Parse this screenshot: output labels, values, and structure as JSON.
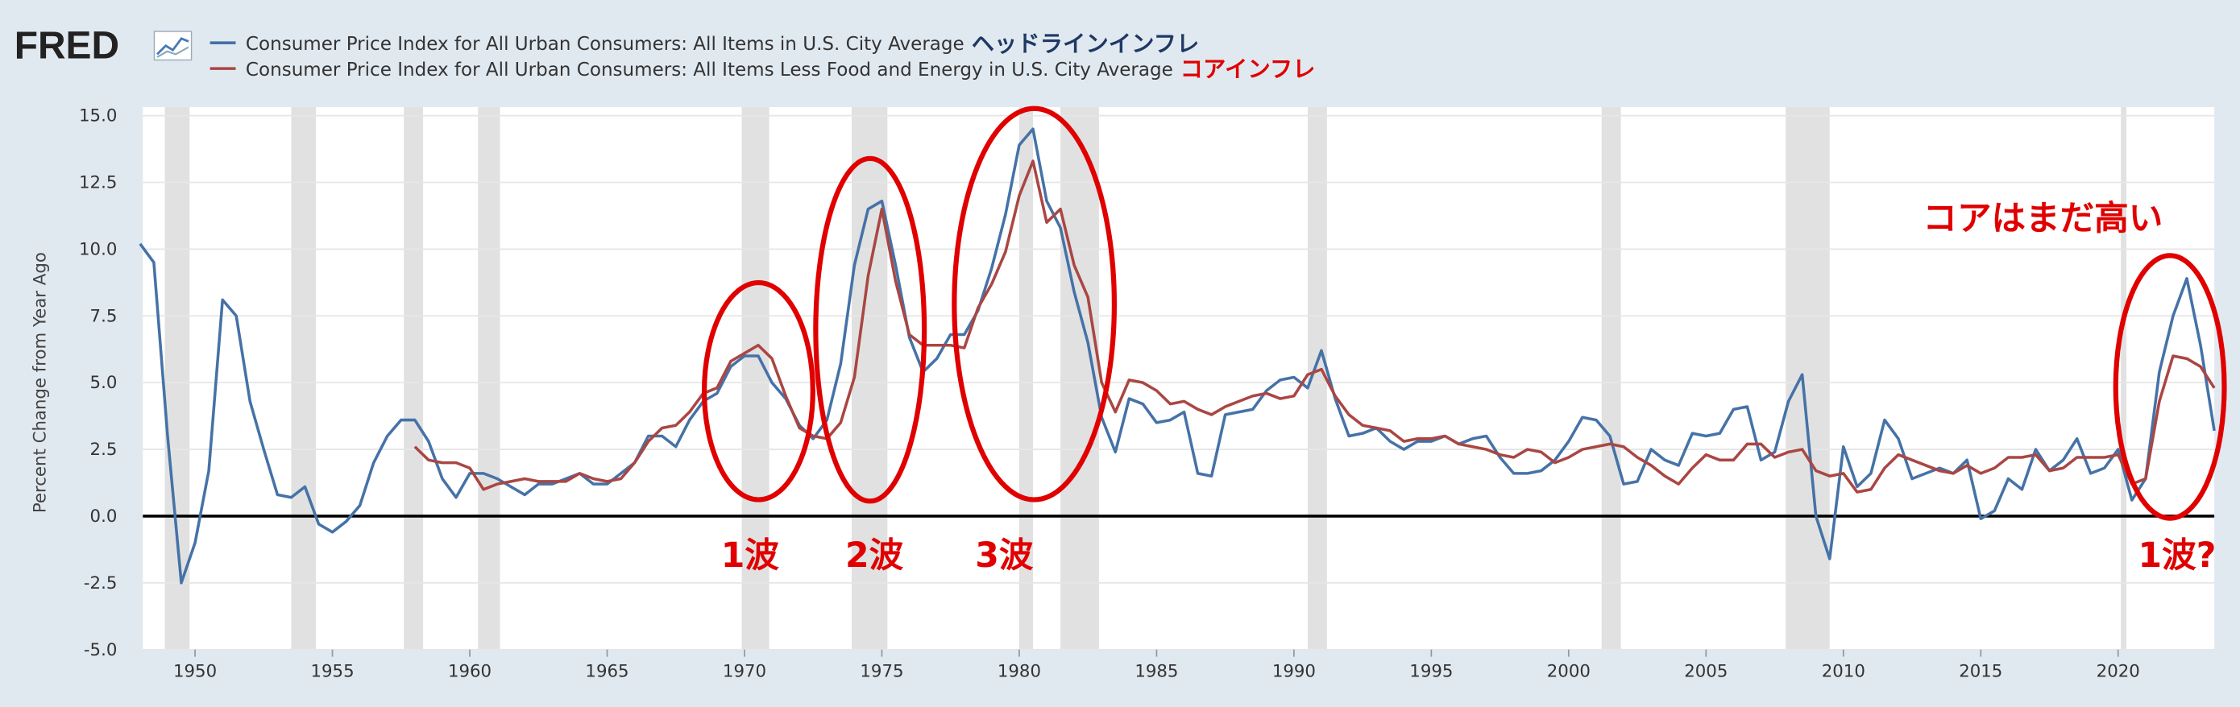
{
  "chart_data": {
    "type": "line",
    "logo": "FRED",
    "y_axis_label": "Percent Change from Year Ago",
    "legend_notes": [
      "ヘッドラインインフレ",
      "コアインフレ"
    ],
    "annotations": [
      "1波",
      "2波",
      "3波",
      "1波?",
      "コアはまだ高い"
    ],
    "xlim": [
      1948.1,
      2023.5
    ],
    "xticks": [
      1950,
      1955,
      1960,
      1965,
      1970,
      1975,
      1980,
      1985,
      1990,
      1995,
      2000,
      2005,
      2010,
      2015,
      2020
    ],
    "ylim": [
      -5,
      15
    ],
    "yticks": [
      {
        "value": -5,
        "label": "-5.0"
      },
      {
        "value": -2.5,
        "label": "-2.5"
      },
      {
        "value": 0,
        "label": "0.0"
      },
      {
        "value": 2.5,
        "label": "2.5"
      },
      {
        "value": 5,
        "label": "5.0"
      },
      {
        "value": 7.5,
        "label": "7.5"
      },
      {
        "value": 10,
        "label": "10.0"
      },
      {
        "value": 12.5,
        "label": "12.5"
      },
      {
        "value": 15,
        "label": "15.0"
      }
    ],
    "grid": true,
    "recessions": [
      [
        1948.9,
        1949.8
      ],
      [
        1953.5,
        1954.4
      ],
      [
        1957.6,
        1958.3
      ],
      [
        1960.3,
        1961.1
      ],
      [
        1969.9,
        1970.9
      ],
      [
        1973.9,
        1975.2
      ],
      [
        1980.0,
        1980.5
      ],
      [
        1981.5,
        1982.9
      ],
      [
        1990.5,
        1991.2
      ],
      [
        2001.2,
        2001.9
      ],
      [
        2007.9,
        2009.5
      ],
      [
        2020.1,
        2020.3
      ]
    ],
    "x": [
      1948.0,
      1948.5,
      1949.0,
      1949.5,
      1950.0,
      1950.5,
      1951.0,
      1951.5,
      1952.0,
      1952.5,
      1953.0,
      1953.5,
      1954.0,
      1954.5,
      1955.0,
      1955.5,
      1956.0,
      1956.5,
      1957.0,
      1957.5,
      1958.0,
      1958.5,
      1959.0,
      1959.5,
      1960.0,
      1960.5,
      1961.0,
      1961.5,
      1962.0,
      1962.5,
      1963.0,
      1963.5,
      1964.0,
      1964.5,
      1965.0,
      1965.5,
      1966.0,
      1966.5,
      1967.0,
      1967.5,
      1968.0,
      1968.5,
      1969.0,
      1969.5,
      1970.0,
      1970.5,
      1971.0,
      1971.5,
      1972.0,
      1972.5,
      1973.0,
      1973.5,
      1974.0,
      1974.5,
      1975.0,
      1975.5,
      1976.0,
      1976.5,
      1977.0,
      1977.5,
      1978.0,
      1978.5,
      1979.0,
      1979.5,
      1980.0,
      1980.5,
      1981.0,
      1981.5,
      1982.0,
      1982.5,
      1983.0,
      1983.5,
      1984.0,
      1984.5,
      1985.0,
      1985.5,
      1986.0,
      1986.5,
      1987.0,
      1987.5,
      1988.0,
      1988.5,
      1989.0,
      1989.5,
      1990.0,
      1990.5,
      1991.0,
      1991.5,
      1992.0,
      1992.5,
      1993.0,
      1993.5,
      1994.0,
      1994.5,
      1995.0,
      1995.5,
      1996.0,
      1996.5,
      1997.0,
      1997.5,
      1998.0,
      1998.5,
      1999.0,
      1999.5,
      2000.0,
      2000.5,
      2001.0,
      2001.5,
      2002.0,
      2002.5,
      2003.0,
      2003.5,
      2004.0,
      2004.5,
      2005.0,
      2005.5,
      2006.0,
      2006.5,
      2007.0,
      2007.5,
      2008.0,
      2008.5,
      2009.0,
      2009.5,
      2010.0,
      2010.5,
      2011.0,
      2011.5,
      2012.0,
      2012.5,
      2013.0,
      2013.5,
      2014.0,
      2014.5,
      2015.0,
      2015.5,
      2016.0,
      2016.5,
      2017.0,
      2017.5,
      2018.0,
      2018.5,
      2019.0,
      2019.5,
      2020.0,
      2020.5,
      2021.0,
      2021.5,
      2022.0,
      2022.5,
      2023.0,
      2023.5
    ],
    "series": [
      {
        "name": "Consumer Price Index for All Urban Consumers: All Items in U.S. City Average",
        "color": "#4572a7",
        "values": [
          10.2,
          9.5,
          3.0,
          -2.5,
          -1.0,
          1.7,
          8.1,
          7.5,
          4.3,
          2.5,
          0.8,
          0.7,
          1.1,
          -0.3,
          -0.6,
          -0.2,
          0.4,
          2.0,
          3.0,
          3.6,
          3.6,
          2.8,
          1.4,
          0.7,
          1.6,
          1.6,
          1.4,
          1.1,
          0.8,
          1.2,
          1.2,
          1.4,
          1.6,
          1.2,
          1.2,
          1.6,
          2.0,
          3.0,
          3.0,
          2.6,
          3.6,
          4.3,
          4.6,
          5.6,
          6.0,
          6.0,
          5.0,
          4.4,
          3.4,
          2.9,
          3.6,
          5.7,
          9.4,
          11.5,
          11.8,
          9.4,
          6.7,
          5.4,
          5.9,
          6.8,
          6.8,
          7.7,
          9.3,
          11.3,
          13.9,
          14.5,
          11.8,
          10.8,
          8.4,
          6.5,
          3.7,
          2.4,
          4.4,
          4.2,
          3.5,
          3.6,
          3.9,
          1.6,
          1.5,
          3.8,
          3.9,
          4.0,
          4.7,
          5.1,
          5.2,
          4.8,
          6.2,
          4.4,
          3.0,
          3.1,
          3.3,
          2.8,
          2.5,
          2.8,
          2.8,
          3.0,
          2.7,
          2.9,
          3.0,
          2.2,
          1.6,
          1.6,
          1.7,
          2.1,
          2.8,
          3.7,
          3.6,
          3.0,
          1.2,
          1.3,
          2.5,
          2.1,
          1.9,
          3.1,
          3.0,
          3.1,
          4.0,
          4.1,
          2.1,
          2.4,
          4.3,
          5.3,
          0.0,
          -1.6,
          2.6,
          1.1,
          1.6,
          3.6,
          2.9,
          1.4,
          1.6,
          1.8,
          1.6,
          2.1,
          -0.1,
          0.2,
          1.4,
          1.0,
          2.5,
          1.7,
          2.1,
          2.9,
          1.6,
          1.8,
          2.5,
          0.6,
          1.4,
          5.4,
          7.5,
          8.9,
          6.4,
          3.2
        ]
      },
      {
        "name": "Consumer Price Index for All Urban Consumers: All Items Less Food and Energy in U.S. City Average",
        "color": "#aa4643",
        "values": [
          null,
          null,
          null,
          null,
          null,
          null,
          null,
          null,
          null,
          null,
          null,
          null,
          null,
          null,
          null,
          null,
          null,
          null,
          null,
          null,
          2.6,
          2.1,
          2.0,
          2.0,
          1.8,
          1.0,
          1.2,
          1.3,
          1.4,
          1.3,
          1.3,
          1.3,
          1.6,
          1.4,
          1.3,
          1.4,
          2.0,
          2.8,
          3.3,
          3.4,
          3.9,
          4.6,
          4.8,
          5.8,
          6.1,
          6.4,
          5.9,
          4.5,
          3.3,
          3.0,
          2.9,
          3.5,
          5.2,
          9.0,
          11.5,
          8.8,
          6.8,
          6.4,
          6.4,
          6.4,
          6.3,
          7.8,
          8.7,
          9.9,
          12.0,
          13.3,
          11.0,
          11.5,
          9.4,
          8.2,
          5.0,
          3.9,
          5.1,
          5.0,
          4.7,
          4.2,
          4.3,
          4.0,
          3.8,
          4.1,
          4.3,
          4.5,
          4.6,
          4.4,
          4.5,
          5.3,
          5.5,
          4.5,
          3.8,
          3.4,
          3.3,
          3.2,
          2.8,
          2.9,
          2.9,
          3.0,
          2.7,
          2.6,
          2.5,
          2.3,
          2.2,
          2.5,
          2.4,
          2.0,
          2.2,
          2.5,
          2.6,
          2.7,
          2.6,
          2.2,
          1.9,
          1.5,
          1.2,
          1.8,
          2.3,
          2.1,
          2.1,
          2.7,
          2.7,
          2.2,
          2.4,
          2.5,
          1.7,
          1.5,
          1.6,
          0.9,
          1.0,
          1.8,
          2.3,
          2.1,
          1.9,
          1.7,
          1.6,
          1.9,
          1.6,
          1.8,
          2.2,
          2.2,
          2.3,
          1.7,
          1.8,
          2.2,
          2.2,
          2.2,
          2.3,
          1.2,
          1.4,
          4.3,
          6.0,
          5.9,
          5.6,
          4.8
        ]
      }
    ]
  }
}
